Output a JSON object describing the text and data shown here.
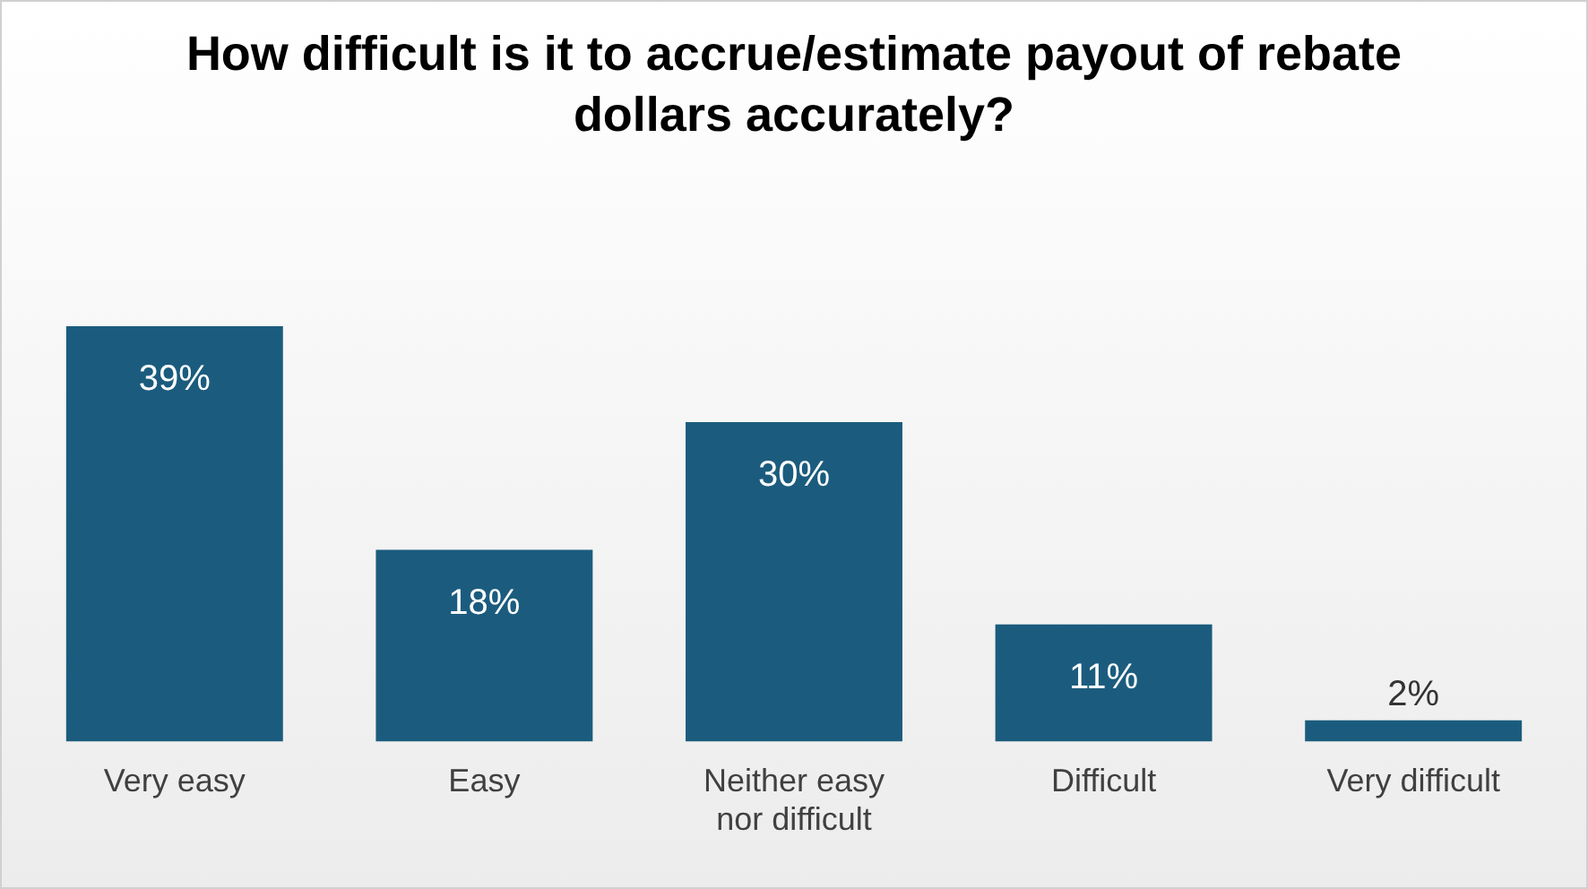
{
  "chart_data": {
    "type": "bar",
    "title": "How difficult is it to accrue/estimate payout of rebate dollars accurately?",
    "categories": [
      "Very easy",
      "Easy",
      "Neither easy nor difficult",
      "Difficult",
      "Very difficult"
    ],
    "values": [
      39,
      18,
      30,
      11,
      2
    ],
    "value_labels": [
      "39%",
      "18%",
      "30%",
      "11%",
      "2%"
    ],
    "color": "#1b5c7e"
  }
}
